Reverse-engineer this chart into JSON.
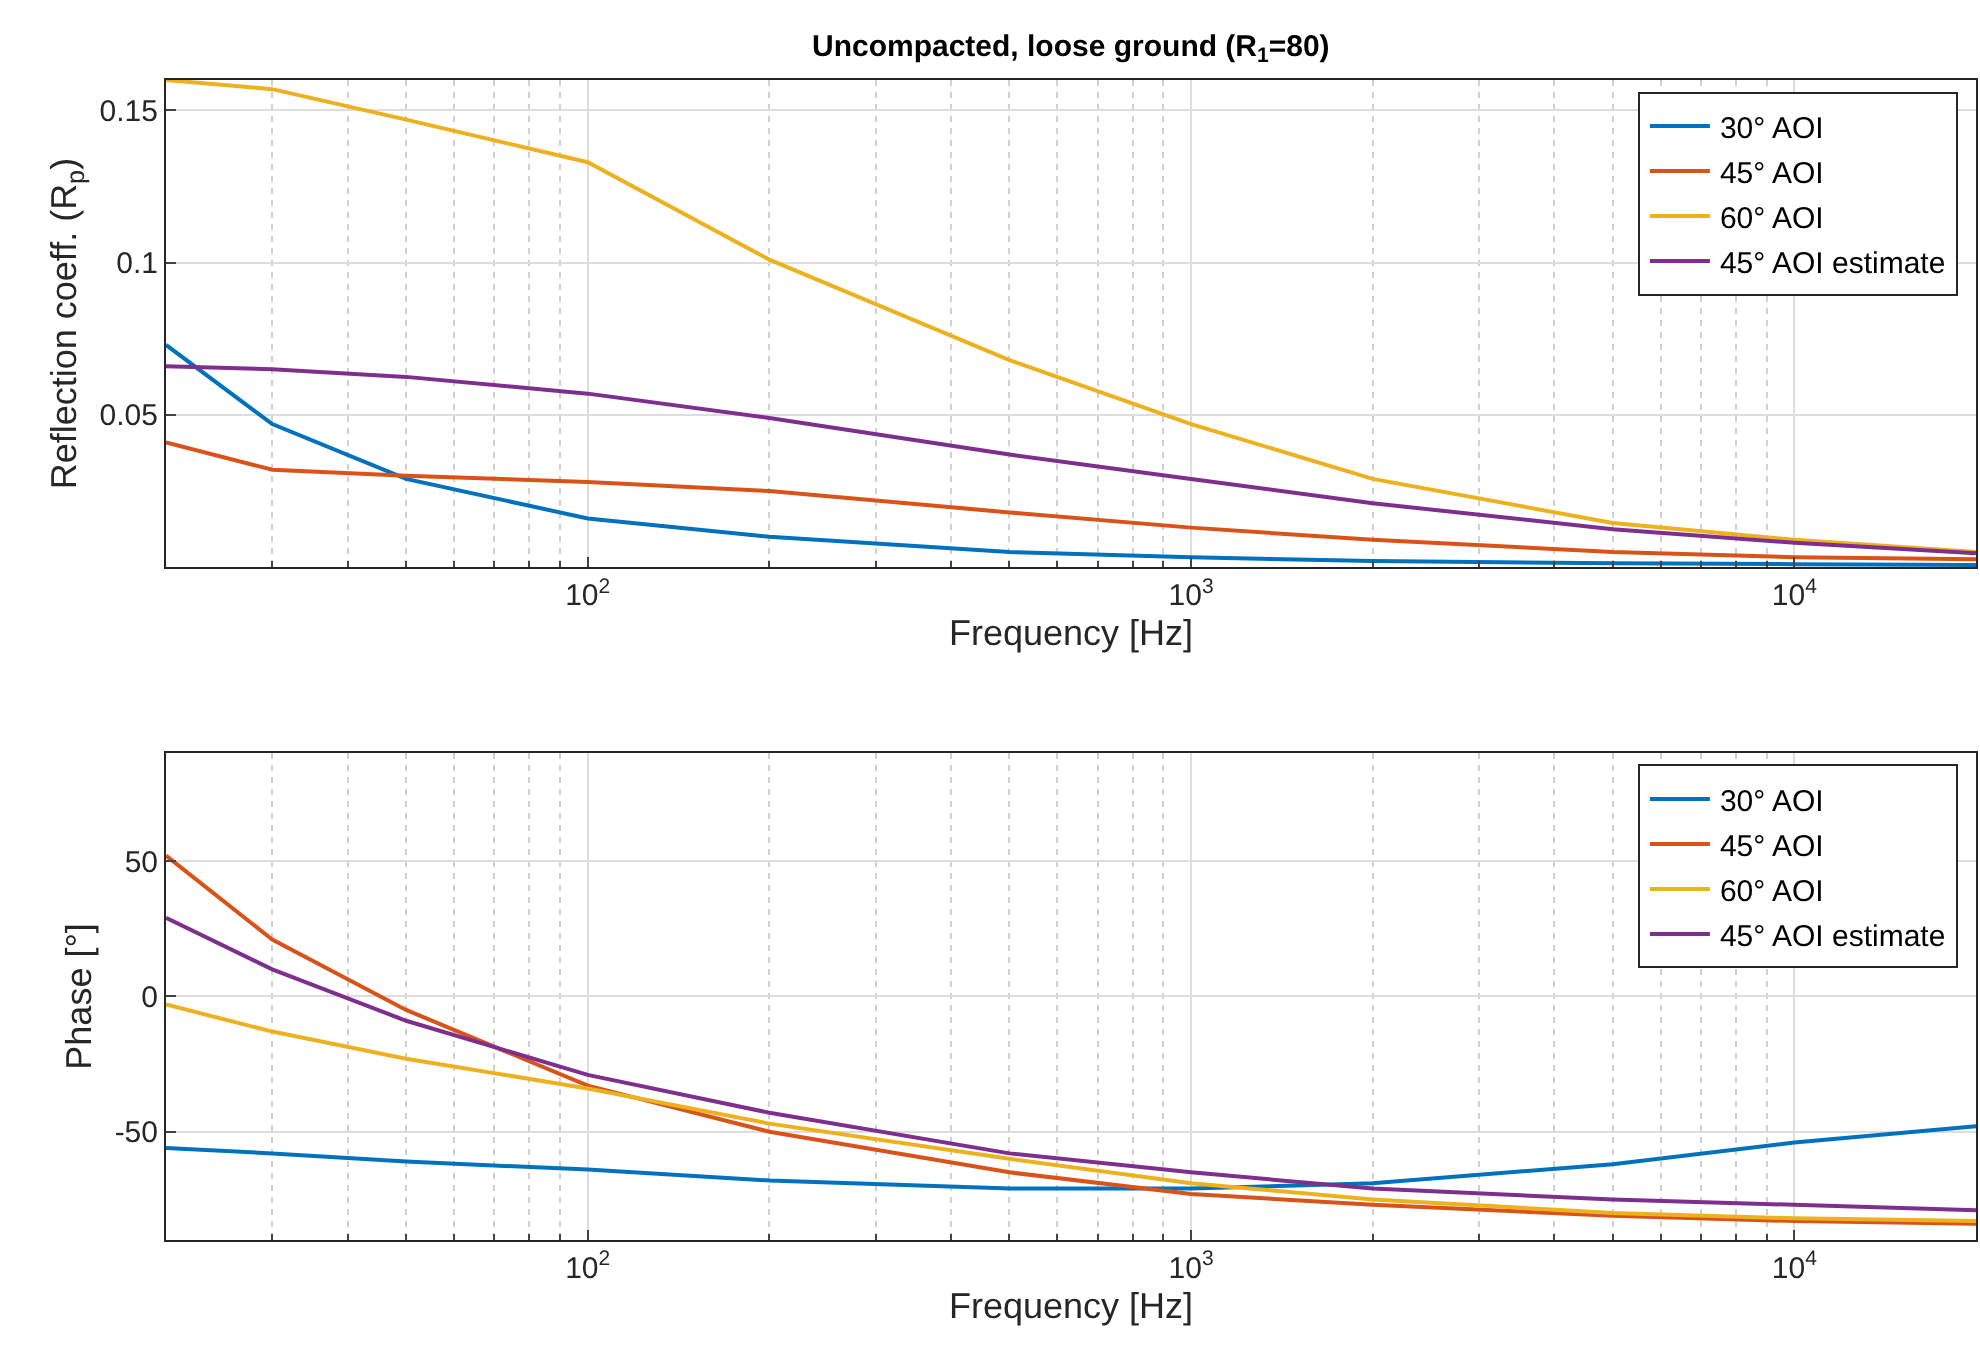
{
  "chart_data": [
    {
      "type": "line",
      "title": "Uncompacted, loose ground (R$_{1}$=80)",
      "xlabel": "Frequency [Hz]",
      "ylabel": "Reflection coeff. (R$_{p}$)",
      "log": "x",
      "grid": true,
      "legend": "top right",
      "xlim": [
        20,
        20000
      ],
      "xticks": [
        {
          "value": 100,
          "label": "10$^{2}$"
        },
        {
          "value": 1000,
          "label": "10$^{3}$"
        },
        {
          "value": 10000,
          "label": "10$^{4}$"
        }
      ],
      "ylim": [
        0,
        0.16
      ],
      "yticks": [
        0.05,
        0.1,
        0.15
      ],
      "x": [
        20,
        30,
        50,
        100,
        200,
        500,
        1000,
        2000,
        5000,
        10000,
        20000
      ],
      "series": [
        {
          "name": "30° AOI",
          "color": "#0072bd",
          "values": [
            0.073,
            0.047,
            0.029,
            0.016,
            0.01,
            0.005,
            0.0033,
            0.002,
            0.0013,
            0.001,
            0.0007
          ]
        },
        {
          "name": "45° AOI",
          "color": "#d95319",
          "values": [
            0.041,
            0.032,
            0.03,
            0.028,
            0.025,
            0.018,
            0.013,
            0.009,
            0.005,
            0.0033,
            0.0026
          ]
        },
        {
          "name": "60° AOI",
          "color": "#edb120",
          "values": [
            0.16,
            0.157,
            0.147,
            0.133,
            0.101,
            0.068,
            0.047,
            0.029,
            0.0145,
            0.009,
            0.005
          ]
        },
        {
          "name": "45° AOI estimate",
          "color": "#7e2f8e",
          "values": [
            0.066,
            0.065,
            0.0625,
            0.057,
            0.049,
            0.037,
            0.029,
            0.021,
            0.0125,
            0.008,
            0.0046
          ]
        }
      ]
    },
    {
      "type": "line",
      "xlabel": "Frequency [Hz]",
      "ylabel": "Phase [°]",
      "log": "x",
      "grid": true,
      "legend": "top right",
      "xlim": [
        20,
        20000
      ],
      "xticks": [
        {
          "value": 100,
          "label": "10$^{2}$"
        },
        {
          "value": 1000,
          "label": "10$^{3}$"
        },
        {
          "value": 10000,
          "label": "10$^{4}$"
        }
      ],
      "ylim": [
        -90,
        90
      ],
      "yticks": [
        -50,
        0,
        50
      ],
      "x": [
        20,
        30,
        50,
        100,
        200,
        500,
        1000,
        2000,
        5000,
        10000,
        20000
      ],
      "series": [
        {
          "name": "30° AOI",
          "color": "#0072bd",
          "values": [
            -56,
            -58,
            -61,
            -64,
            -68,
            -71,
            -71,
            -69,
            -62,
            -54,
            -48
          ]
        },
        {
          "name": "45° AOI",
          "color": "#d95319",
          "values": [
            52,
            21,
            -5,
            -33,
            -50,
            -65,
            -73,
            -77,
            -81,
            -83,
            -84
          ]
        },
        {
          "name": "60° AOI",
          "color": "#edb120",
          "values": [
            -3,
            -13,
            -23,
            -34,
            -47,
            -60,
            -69,
            -75,
            -80,
            -82,
            -83
          ]
        },
        {
          "name": "45° AOI estimate",
          "color": "#7e2f8e",
          "values": [
            29,
            10,
            -9,
            -29,
            -43,
            -58,
            -65,
            -71,
            -75,
            -77,
            -79
          ]
        }
      ]
    }
  ]
}
